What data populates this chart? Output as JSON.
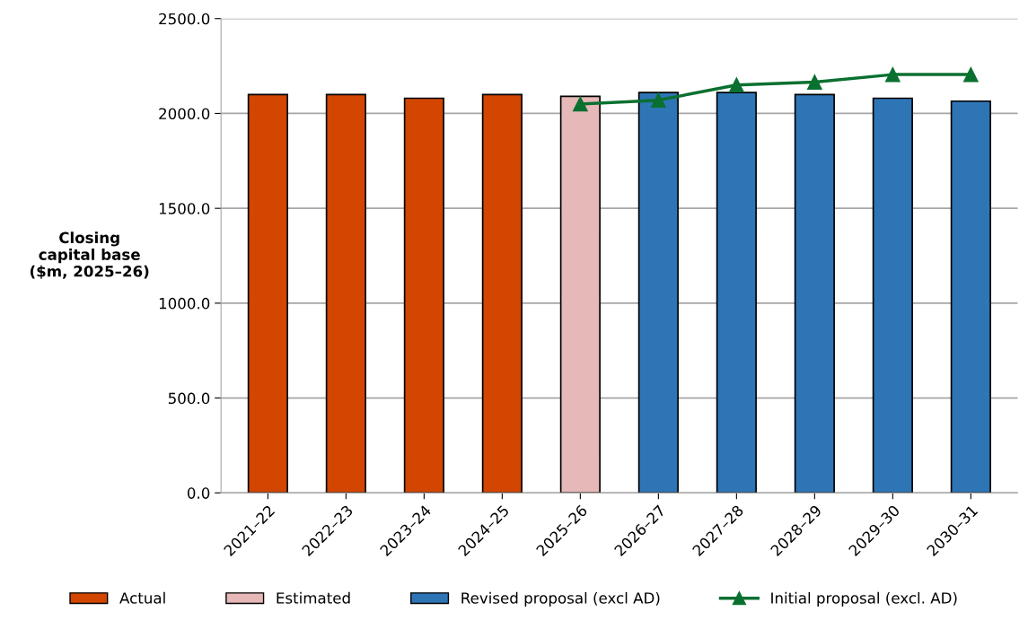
{
  "chart_data": {
    "type": "bar",
    "ylabel": "Closing\ncapital base\n($m, 2025–26)",
    "categories": [
      "2021–22",
      "2022–23",
      "2023–24",
      "2024–25",
      "2025–26",
      "2026–27",
      "2027–28",
      "2028–29",
      "2029–30",
      "2030–31"
    ],
    "series": [
      {
        "name": "Actual",
        "color": "#d24600",
        "values": [
          2100,
          2100,
          2080,
          2100,
          null,
          null,
          null,
          null,
          null,
          null
        ]
      },
      {
        "name": "Estimated",
        "color": "#e6b8b7",
        "values": [
          null,
          null,
          null,
          null,
          2090,
          null,
          null,
          null,
          null,
          null
        ]
      },
      {
        "name": "Revised proposal (excl AD)",
        "color": "#2e75b6",
        "values": [
          null,
          null,
          null,
          null,
          null,
          2110,
          2110,
          2100,
          2080,
          2065
        ]
      },
      {
        "name": "Initial proposal (excl. AD)",
        "type": "line",
        "color": "#0a7030",
        "marker": "triangle",
        "values": [
          null,
          null,
          null,
          null,
          2050,
          2070,
          2150,
          2165,
          2205,
          2205
        ]
      }
    ],
    "ylim": [
      0,
      2500
    ],
    "yticks": [
      {
        "value": 0,
        "label": "0.0"
      },
      {
        "value": 500,
        "label": "500.0"
      },
      {
        "value": 1000,
        "label": "1000.0"
      },
      {
        "value": 1500,
        "label": "1500.0"
      },
      {
        "value": 2000,
        "label": "2000.0"
      },
      {
        "value": 2500,
        "label": "2500.0"
      }
    ],
    "grid": "y",
    "legend": "bottom"
  }
}
